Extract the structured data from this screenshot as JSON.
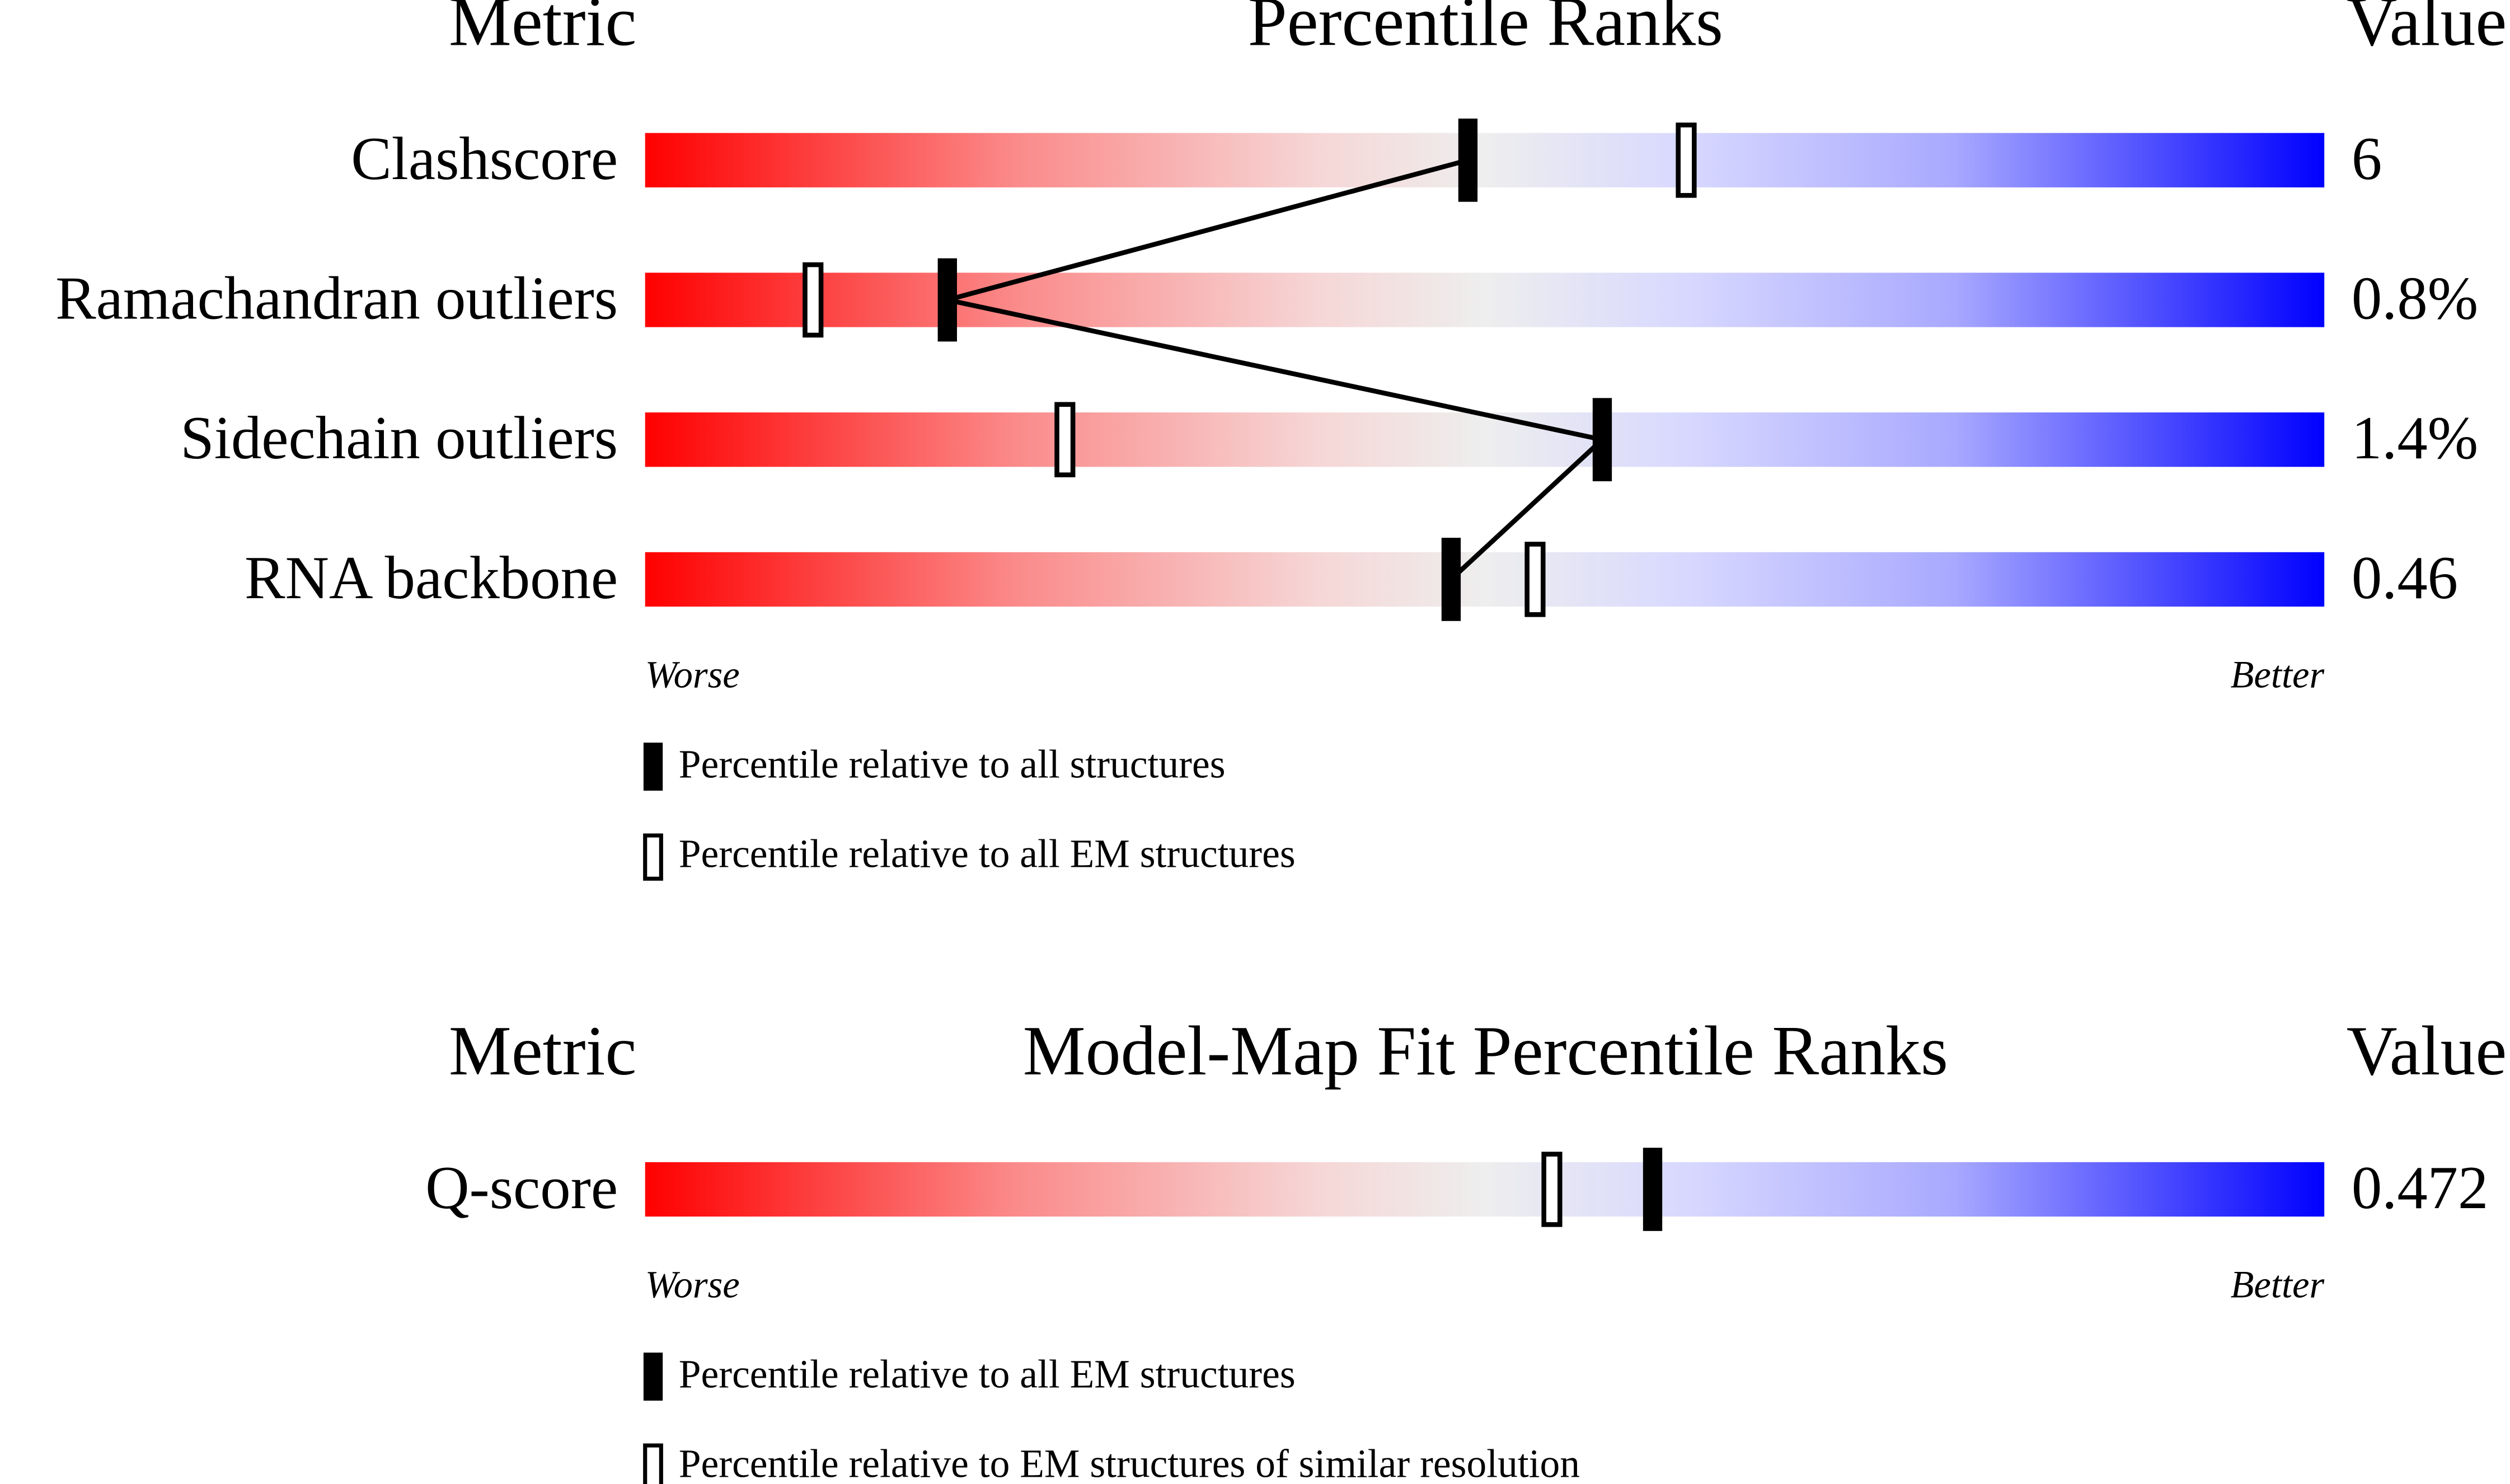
{
  "chart_data": [
    {
      "type": "percentile-slider",
      "metric_header": "Metric",
      "title": "Percentile Ranks",
      "value_header": "Value",
      "categories": [
        "Clashscore",
        "Ramachandran outliers",
        "Sidechain outliers",
        "RNA backbone"
      ],
      "metric_values": [
        "6",
        "0.8%",
        "1.4%",
        "0.46"
      ],
      "xlim": [
        0,
        100
      ],
      "x_start_label": "Worse",
      "x_end_label": "Better",
      "series": [
        {
          "name": "Percentile relative to all structures",
          "style": "filled",
          "color": "#000000",
          "connect": true,
          "values": [
            49,
            18,
            57,
            48
          ]
        },
        {
          "name": "Percentile relative to all EM structures",
          "style": "open",
          "color": "#000000",
          "connect": false,
          "values": [
            62,
            10,
            25,
            53
          ]
        }
      ]
    },
    {
      "type": "percentile-slider",
      "metric_header": "Metric",
      "title": "Model-Map Fit Percentile Ranks",
      "value_header": "Value",
      "categories": [
        "Q-score"
      ],
      "metric_values": [
        "0.472"
      ],
      "xlim": [
        0,
        100
      ],
      "x_start_label": "Worse",
      "x_end_label": "Better",
      "series": [
        {
          "name": "Percentile relative to all EM structures",
          "style": "filled",
          "color": "#000000",
          "connect": true,
          "values": [
            60
          ]
        },
        {
          "name": "Percentile relative to EM structures of similar resolution",
          "style": "open",
          "color": "#000000",
          "connect": false,
          "values": [
            54
          ]
        }
      ]
    }
  ]
}
